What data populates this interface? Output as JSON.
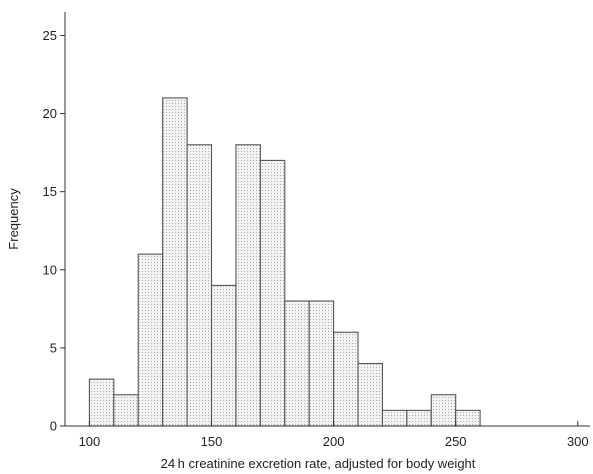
{
  "chart_data": {
    "type": "bar",
    "title": "",
    "xlabel": "24 h creatinine excretion rate, adjusted for body weight",
    "ylabel": "Frequency",
    "xlim": [
      90,
      305
    ],
    "ylim": [
      0,
      26.5
    ],
    "xticks": [
      100,
      150,
      200,
      250,
      300
    ],
    "yticks": [
      0,
      5,
      10,
      15,
      20,
      25
    ],
    "grid": false,
    "legend": "none",
    "bins": [
      {
        "start": 100,
        "end": 110,
        "value": 3
      },
      {
        "start": 110,
        "end": 120,
        "value": 2
      },
      {
        "start": 120,
        "end": 130,
        "value": 11
      },
      {
        "start": 130,
        "end": 140,
        "value": 21
      },
      {
        "start": 140,
        "end": 150,
        "value": 18
      },
      {
        "start": 150,
        "end": 160,
        "value": 9
      },
      {
        "start": 160,
        "end": 170,
        "value": 18
      },
      {
        "start": 170,
        "end": 180,
        "value": 17
      },
      {
        "start": 180,
        "end": 190,
        "value": 8
      },
      {
        "start": 190,
        "end": 200,
        "value": 8
      },
      {
        "start": 200,
        "end": 210,
        "value": 6
      },
      {
        "start": 210,
        "end": 220,
        "value": 4
      },
      {
        "start": 220,
        "end": 230,
        "value": 1
      },
      {
        "start": 230,
        "end": 240,
        "value": 1
      },
      {
        "start": 240,
        "end": 250,
        "value": 2
      },
      {
        "start": 250,
        "end": 260,
        "value": 1
      }
    ],
    "colors": {
      "bar_fill": "#f3f3f3",
      "bar_dots": "#9a9a9a",
      "bar_edge": "#555555",
      "axis": "#333333"
    }
  }
}
